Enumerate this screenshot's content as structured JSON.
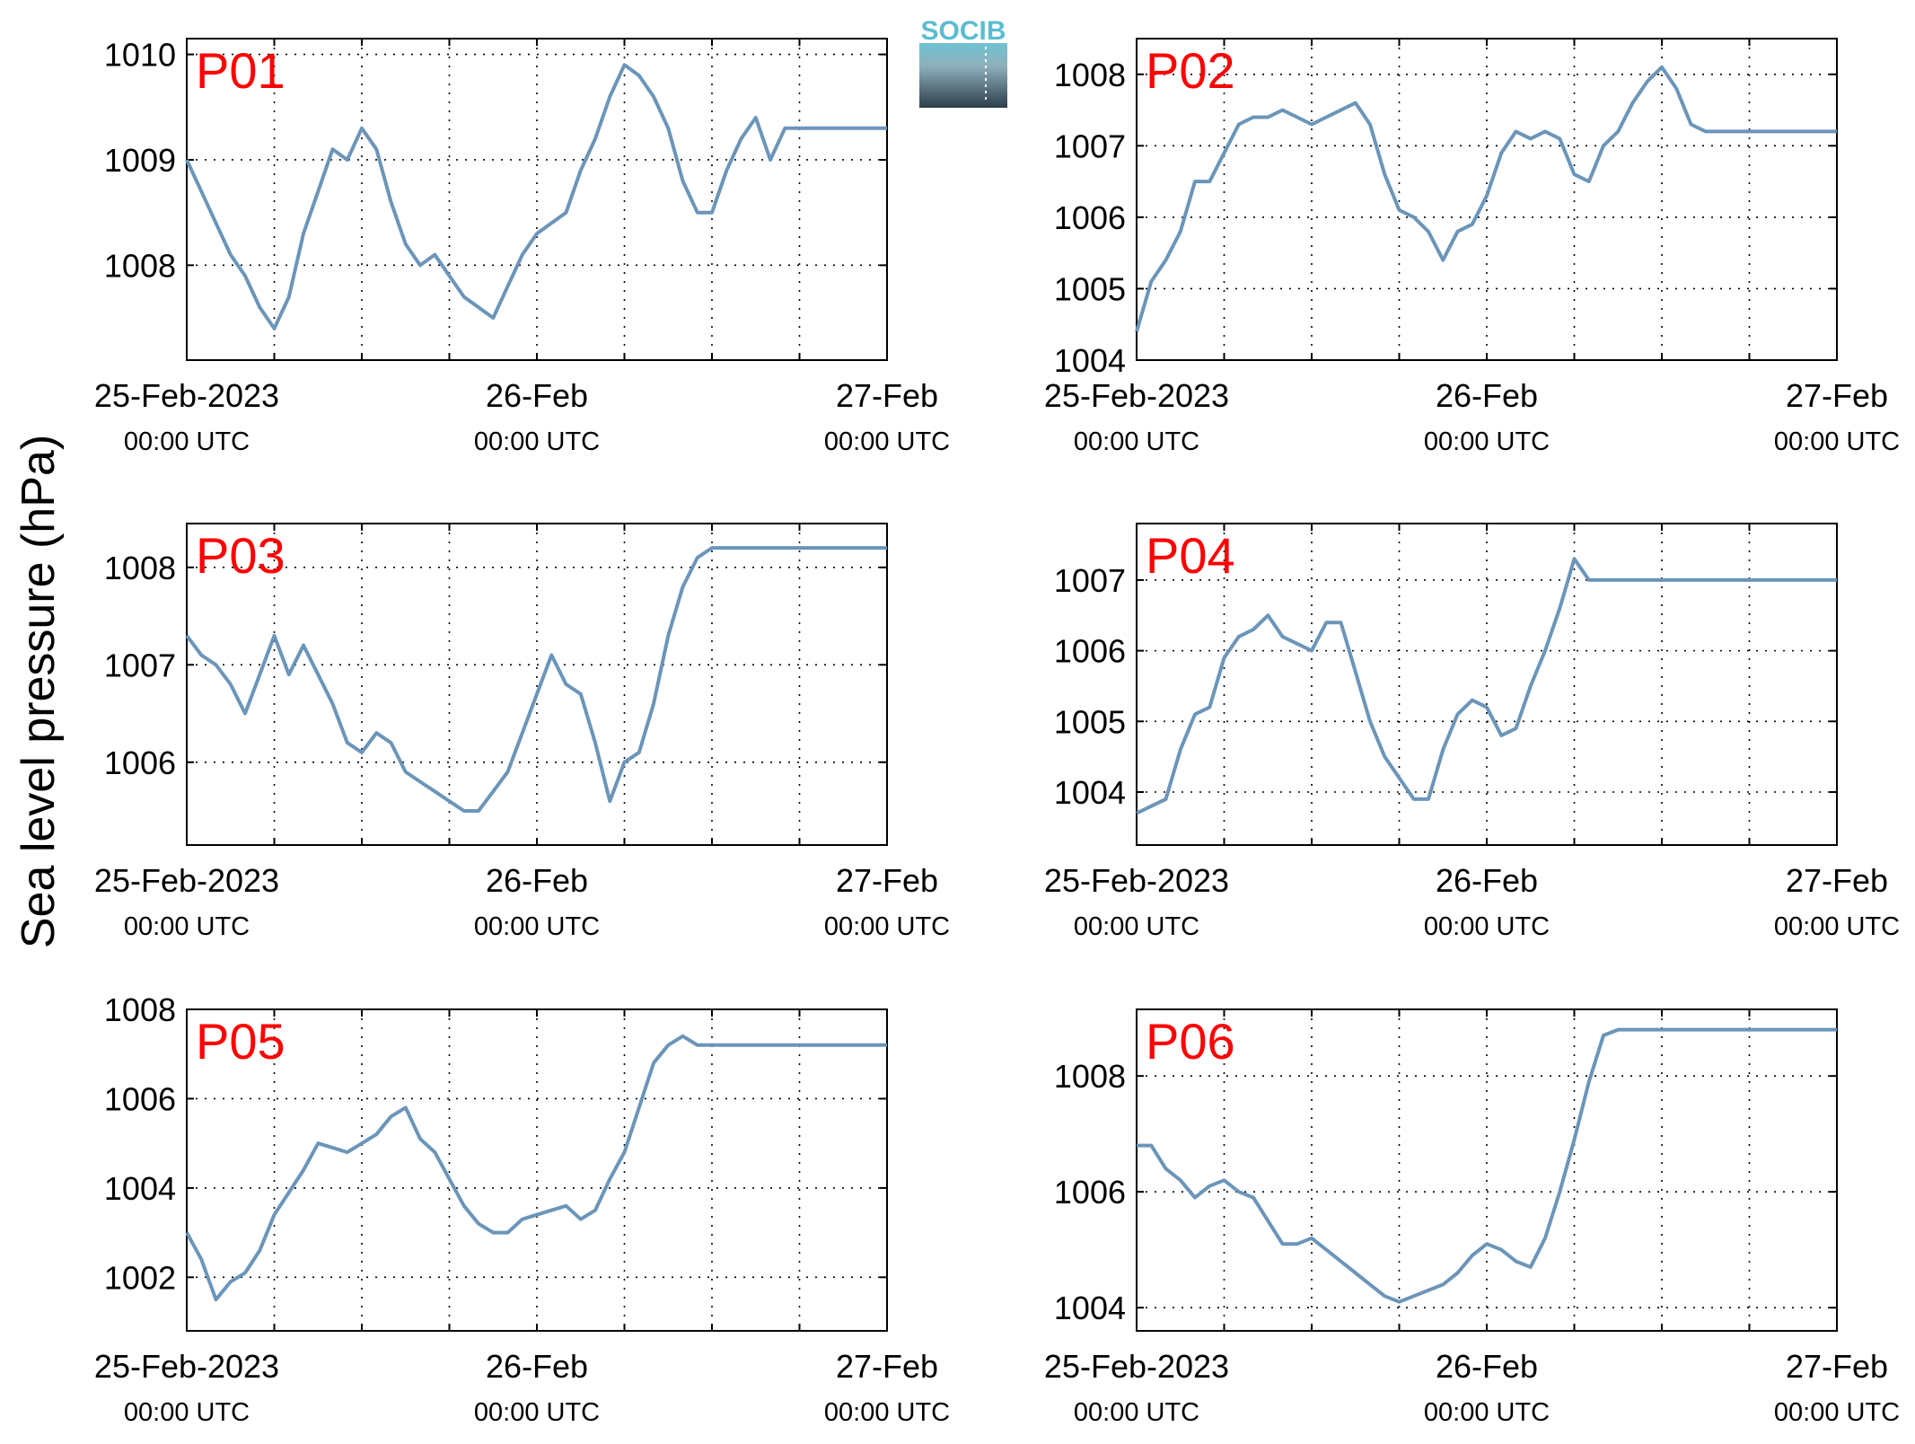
{
  "figure": {
    "ylabel": "Sea level pressure (hPa)",
    "logo_text": "SOCIB",
    "line_color": "#6b95b9",
    "title_color": "#ff0000"
  },
  "chart_data": [
    {
      "type": "line",
      "title": "P01",
      "xlim": [
        "2023-02-25T00:00",
        "2023-02-27T00:00"
      ],
      "ylim": [
        1007.1,
        1010.15
      ],
      "y_ticks": [
        "1008",
        "1009",
        "1010"
      ],
      "x_tick_labels": [
        {
          "date": "25-Feb-2023",
          "time": "00:00 UTC"
        },
        {
          "date": "26-Feb",
          "time": "00:00 UTC"
        },
        {
          "date": "27-Feb",
          "time": "00:00 UTC"
        }
      ],
      "grid": true,
      "series": [
        {
          "x_hours": [
            0,
            1,
            2,
            3,
            4,
            5,
            6,
            7,
            8,
            9,
            10,
            11,
            12,
            13,
            14,
            15,
            16,
            17,
            18,
            19,
            20,
            21,
            22,
            23,
            24,
            25,
            26,
            27,
            28,
            29,
            30,
            31,
            32,
            33,
            34,
            35,
            36,
            37,
            38,
            39,
            40,
            41,
            42,
            43,
            44,
            45,
            46,
            47,
            48
          ],
          "values": [
            1009.0,
            1008.7,
            1008.4,
            1008.1,
            1007.9,
            1007.6,
            1007.4,
            1007.7,
            1008.3,
            1008.7,
            1009.1,
            1009.0,
            1009.3,
            1009.1,
            1008.6,
            1008.2,
            1008.0,
            1008.1,
            1007.9,
            1007.7,
            1007.6,
            1007.5,
            1007.8,
            1008.1,
            1008.3,
            1008.4,
            1008.5,
            1008.9,
            1009.2,
            1009.6,
            1009.9,
            1009.8,
            1009.6,
            1009.3,
            1008.8,
            1008.5,
            1008.5,
            1008.9,
            1009.2,
            1009.4,
            1009.0,
            1009.3,
            1009.3,
            1009.3,
            1009.3,
            1009.3,
            1009.3,
            1009.3,
            1009.3
          ]
        }
      ]
    },
    {
      "type": "line",
      "title": "P02",
      "xlim": [
        "2023-02-25T00:00",
        "2023-02-27T00:00"
      ],
      "ylim": [
        1004.0,
        1008.5
      ],
      "y_ticks": [
        "1004",
        "1005",
        "1006",
        "1007",
        "1008"
      ],
      "x_tick_labels": [
        {
          "date": "25-Feb-2023",
          "time": "00:00 UTC"
        },
        {
          "date": "26-Feb",
          "time": "00:00 UTC"
        },
        {
          "date": "27-Feb",
          "time": "00:00 UTC"
        }
      ],
      "grid": true,
      "series": [
        {
          "x_hours": [
            0,
            1,
            2,
            3,
            4,
            5,
            6,
            7,
            8,
            9,
            10,
            11,
            12,
            13,
            14,
            15,
            16,
            17,
            18,
            19,
            20,
            21,
            22,
            23,
            24,
            25,
            26,
            27,
            28,
            29,
            30,
            31,
            32,
            33,
            34,
            35,
            36,
            37,
            38,
            39,
            40,
            41,
            42,
            43,
            44,
            45,
            46,
            47,
            48
          ],
          "values": [
            1004.4,
            1005.1,
            1005.4,
            1005.8,
            1006.5,
            1006.5,
            1006.9,
            1007.3,
            1007.4,
            1007.4,
            1007.5,
            1007.4,
            1007.3,
            1007.4,
            1007.5,
            1007.6,
            1007.3,
            1006.6,
            1006.1,
            1006.0,
            1005.8,
            1005.4,
            1005.8,
            1005.9,
            1006.3,
            1006.9,
            1007.2,
            1007.1,
            1007.2,
            1007.1,
            1006.6,
            1006.5,
            1007.0,
            1007.2,
            1007.6,
            1007.9,
            1008.1,
            1007.8,
            1007.3,
            1007.2,
            1007.2,
            1007.2,
            1007.2,
            1007.2,
            1007.2,
            1007.2,
            1007.2,
            1007.2,
            1007.2
          ]
        }
      ]
    },
    {
      "type": "line",
      "title": "P03",
      "xlim": [
        "2023-02-25T00:00",
        "2023-02-27T00:00"
      ],
      "ylim": [
        1005.15,
        1008.45
      ],
      "y_ticks": [
        "1006",
        "1007",
        "1008"
      ],
      "x_tick_labels": [
        {
          "date": "25-Feb-2023",
          "time": "00:00 UTC"
        },
        {
          "date": "26-Feb",
          "time": "00:00 UTC"
        },
        {
          "date": "27-Feb",
          "time": "00:00 UTC"
        }
      ],
      "grid": true,
      "series": [
        {
          "x_hours": [
            0,
            1,
            2,
            3,
            4,
            5,
            6,
            7,
            8,
            9,
            10,
            11,
            12,
            13,
            14,
            15,
            16,
            17,
            18,
            19,
            20,
            21,
            22,
            23,
            24,
            25,
            26,
            27,
            28,
            29,
            30,
            31,
            32,
            33,
            34,
            35,
            36,
            37,
            38,
            39,
            40,
            41,
            42,
            43,
            44,
            45,
            46,
            47,
            48
          ],
          "values": [
            1007.3,
            1007.1,
            1007.0,
            1006.8,
            1006.5,
            1006.9,
            1007.3,
            1006.9,
            1007.2,
            1006.9,
            1006.6,
            1006.2,
            1006.1,
            1006.3,
            1006.2,
            1005.9,
            1005.8,
            1005.7,
            1005.6,
            1005.5,
            1005.5,
            1005.7,
            1005.9,
            1006.3,
            1006.7,
            1007.1,
            1006.8,
            1006.7,
            1006.2,
            1005.6,
            1006.0,
            1006.1,
            1006.6,
            1007.3,
            1007.8,
            1008.1,
            1008.2,
            1008.2,
            1008.2,
            1008.2,
            1008.2,
            1008.2,
            1008.2,
            1008.2,
            1008.2,
            1008.2,
            1008.2,
            1008.2,
            1008.2
          ]
        }
      ]
    },
    {
      "type": "line",
      "title": "P04",
      "xlim": [
        "2023-02-25T00:00",
        "2023-02-27T00:00"
      ],
      "ylim": [
        1003.25,
        1007.8
      ],
      "y_ticks": [
        "1004",
        "1005",
        "1006",
        "1007"
      ],
      "x_tick_labels": [
        {
          "date": "25-Feb-2023",
          "time": "00:00 UTC"
        },
        {
          "date": "26-Feb",
          "time": "00:00 UTC"
        },
        {
          "date": "27-Feb",
          "time": "00:00 UTC"
        }
      ],
      "grid": true,
      "series": [
        {
          "x_hours": [
            0,
            1,
            2,
            3,
            4,
            5,
            6,
            7,
            8,
            9,
            10,
            11,
            12,
            13,
            14,
            15,
            16,
            17,
            18,
            19,
            20,
            21,
            22,
            23,
            24,
            25,
            26,
            27,
            28,
            29,
            30,
            31,
            32,
            33,
            34,
            35,
            36,
            37,
            38,
            39,
            40,
            41,
            42,
            43,
            44,
            45,
            46,
            47,
            48
          ],
          "values": [
            1003.7,
            1003.8,
            1003.9,
            1004.6,
            1005.1,
            1005.2,
            1005.9,
            1006.2,
            1006.3,
            1006.5,
            1006.2,
            1006.1,
            1006.0,
            1006.4,
            1006.4,
            1005.7,
            1005.0,
            1004.5,
            1004.2,
            1003.9,
            1003.9,
            1004.6,
            1005.1,
            1005.3,
            1005.2,
            1004.8,
            1004.9,
            1005.5,
            1006.0,
            1006.6,
            1007.3,
            1007.0,
            1007.0,
            1007.0,
            1007.0,
            1007.0,
            1007.0,
            1007.0,
            1007.0,
            1007.0,
            1007.0,
            1007.0,
            1007.0,
            1007.0,
            1007.0,
            1007.0,
            1007.0,
            1007.0,
            1007.0
          ]
        }
      ]
    },
    {
      "type": "line",
      "title": "P05",
      "xlim": [
        "2023-02-25T00:00",
        "2023-02-27T00:00"
      ],
      "ylim": [
        1000.8,
        1008.0
      ],
      "y_ticks": [
        "1002",
        "1004",
        "1006",
        "1008"
      ],
      "x_tick_labels": [
        {
          "date": "25-Feb-2023",
          "time": "00:00 UTC"
        },
        {
          "date": "26-Feb",
          "time": "00:00 UTC"
        },
        {
          "date": "27-Feb",
          "time": "00:00 UTC"
        }
      ],
      "grid": true,
      "series": [
        {
          "x_hours": [
            0,
            1,
            2,
            3,
            4,
            5,
            6,
            7,
            8,
            9,
            10,
            11,
            12,
            13,
            14,
            15,
            16,
            17,
            18,
            19,
            20,
            21,
            22,
            23,
            24,
            25,
            26,
            27,
            28,
            29,
            30,
            31,
            32,
            33,
            34,
            35,
            36,
            37,
            38,
            39,
            40,
            41,
            42,
            43,
            44,
            45,
            46,
            47,
            48
          ],
          "values": [
            1003.0,
            1002.4,
            1001.5,
            1001.9,
            1002.1,
            1002.6,
            1003.4,
            1003.9,
            1004.4,
            1005.0,
            1004.9,
            1004.8,
            1005.0,
            1005.2,
            1005.6,
            1005.8,
            1005.1,
            1004.8,
            1004.2,
            1003.6,
            1003.2,
            1003.0,
            1003.0,
            1003.3,
            1003.4,
            1003.5,
            1003.6,
            1003.3,
            1003.5,
            1004.2,
            1004.8,
            1005.8,
            1006.8,
            1007.2,
            1007.4,
            1007.2,
            1007.2,
            1007.2,
            1007.2,
            1007.2,
            1007.2,
            1007.2,
            1007.2,
            1007.2,
            1007.2,
            1007.2,
            1007.2,
            1007.2,
            1007.2
          ]
        }
      ]
    },
    {
      "type": "line",
      "title": "P06",
      "xlim": [
        "2023-02-25T00:00",
        "2023-02-27T00:00"
      ],
      "ylim": [
        1003.6,
        1009.15
      ],
      "y_ticks": [
        "1004",
        "1006",
        "1008"
      ],
      "x_tick_labels": [
        {
          "date": "25-Feb-2023",
          "time": "00:00 UTC"
        },
        {
          "date": "26-Feb",
          "time": "00:00 UTC"
        },
        {
          "date": "27-Feb",
          "time": "00:00 UTC"
        }
      ],
      "grid": true,
      "series": [
        {
          "x_hours": [
            0,
            1,
            2,
            3,
            4,
            5,
            6,
            7,
            8,
            9,
            10,
            11,
            12,
            13,
            14,
            15,
            16,
            17,
            18,
            19,
            20,
            21,
            22,
            23,
            24,
            25,
            26,
            27,
            28,
            29,
            30,
            31,
            32,
            33,
            34,
            35,
            36,
            37,
            38,
            39,
            40,
            41,
            42,
            43,
            44,
            45,
            46,
            47,
            48
          ],
          "values": [
            1006.8,
            1006.8,
            1006.4,
            1006.2,
            1005.9,
            1006.1,
            1006.2,
            1006.0,
            1005.9,
            1005.5,
            1005.1,
            1005.1,
            1005.2,
            1005.0,
            1004.8,
            1004.6,
            1004.4,
            1004.2,
            1004.1,
            1004.2,
            1004.3,
            1004.4,
            1004.6,
            1004.9,
            1005.1,
            1005.0,
            1004.8,
            1004.7,
            1005.2,
            1006.0,
            1006.9,
            1007.9,
            1008.7,
            1008.8,
            1008.8,
            1008.8,
            1008.8,
            1008.8,
            1008.8,
            1008.8,
            1008.8,
            1008.8,
            1008.8,
            1008.8,
            1008.8,
            1008.8,
            1008.8,
            1008.8,
            1008.8
          ]
        }
      ]
    }
  ]
}
